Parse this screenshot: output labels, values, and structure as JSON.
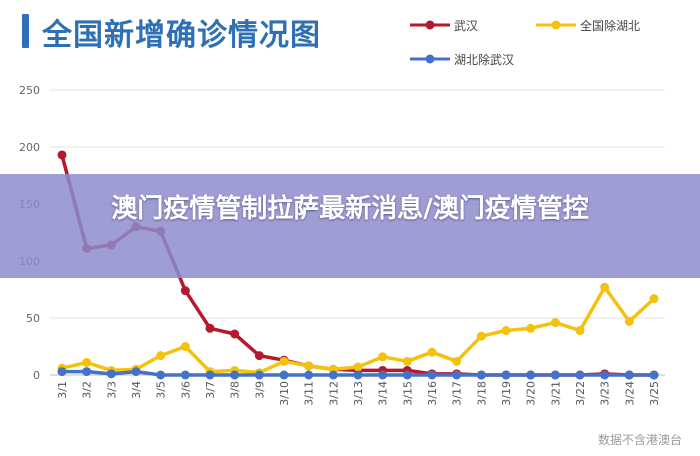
{
  "chart_data": {
    "type": "line",
    "title": "全国新增确诊情况图",
    "x": [
      "3/1",
      "3/2",
      "3/3",
      "3/4",
      "3/5",
      "3/6",
      "3/7",
      "3/8",
      "3/9",
      "3/10",
      "3/11",
      "3/12",
      "3/13",
      "3/14",
      "3/15",
      "3/16",
      "3/17",
      "3/18",
      "3/19",
      "3/20",
      "3/21",
      "3/22",
      "3/23",
      "3/24",
      "3/25"
    ],
    "ylim": [
      0,
      250
    ],
    "yticks": [
      0,
      50,
      100,
      150,
      200,
      250
    ],
    "grid": true,
    "legend_position": "top-right",
    "series": [
      {
        "name": "武汉",
        "color": "#b5192e",
        "values": [
          193,
          111,
          114,
          130,
          126,
          74,
          41,
          36,
          17,
          13,
          8,
          5,
          4,
          4,
          4,
          1,
          1,
          0,
          0,
          0,
          0,
          0,
          1,
          0,
          0
        ]
      },
      {
        "name": "全国除湖北",
        "color": "#f4c20d",
        "values": [
          6,
          11,
          4,
          5,
          17,
          25,
          3,
          4,
          2,
          12,
          8,
          5,
          7,
          16,
          12,
          20,
          12,
          34,
          39,
          41,
          46,
          39,
          77,
          47,
          67
        ]
      },
      {
        "name": "湖北除武汉",
        "color": "#4472c4",
        "values": [
          3,
          3,
          1,
          3,
          0,
          0,
          0,
          0,
          0,
          0,
          0,
          0,
          0,
          0,
          0,
          0,
          0,
          0,
          0,
          0,
          0,
          0,
          0,
          0,
          0
        ]
      }
    ]
  },
  "banner": {
    "text": "澳门疫情管制拉萨最新消息/澳门疫情管控"
  },
  "watermark": {
    "text": "数据不含港澳台"
  }
}
